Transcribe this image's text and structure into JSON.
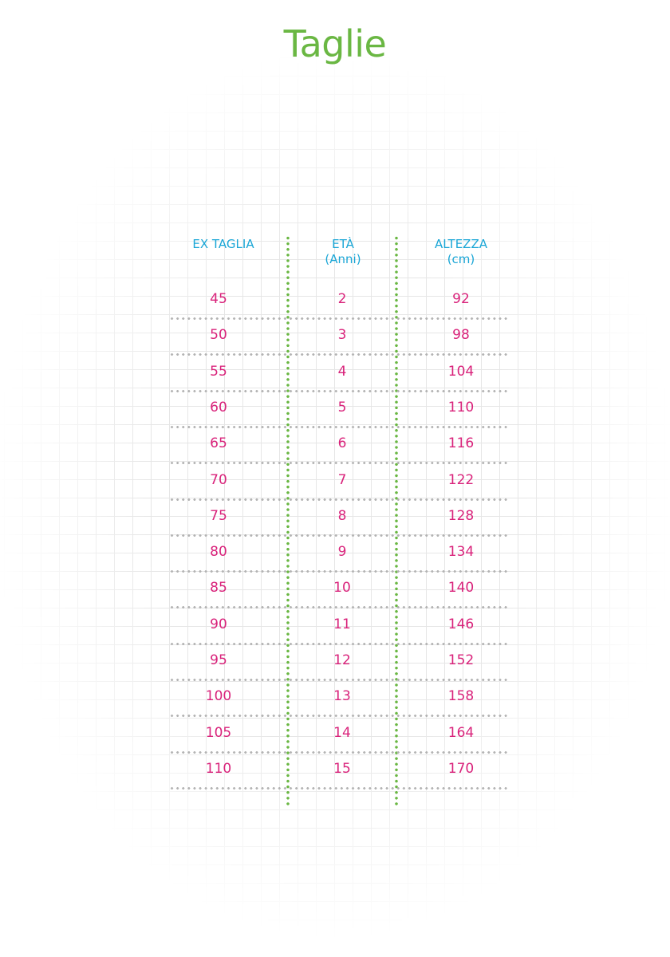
{
  "title": "Taglie",
  "colors": {
    "title": "#6ab743",
    "header": "#1aa6d6",
    "values": "#d9237b",
    "vertical_dividers": "#6ab743",
    "row_dividers": "#b3b3b3"
  },
  "headers": [
    {
      "line1": "EX TAGLIA",
      "line2": ""
    },
    {
      "line1": "ETÀ",
      "line2": "(Anni)"
    },
    {
      "line1": "ALTEZZA",
      "line2": "(cm)"
    }
  ],
  "rows": [
    [
      "45",
      "2",
      "92"
    ],
    [
      "50",
      "3",
      "98"
    ],
    [
      "55",
      "4",
      "104"
    ],
    [
      "60",
      "5",
      "110"
    ],
    [
      "65",
      "6",
      "116"
    ],
    [
      "70",
      "7",
      "122"
    ],
    [
      "75",
      "8",
      "128"
    ],
    [
      "80",
      "9",
      "134"
    ],
    [
      "85",
      "10",
      "140"
    ],
    [
      "90",
      "11",
      "146"
    ],
    [
      "95",
      "12",
      "152"
    ],
    [
      "100",
      "13",
      "158"
    ],
    [
      "105",
      "14",
      "164"
    ],
    [
      "110",
      "15",
      "170"
    ]
  ]
}
